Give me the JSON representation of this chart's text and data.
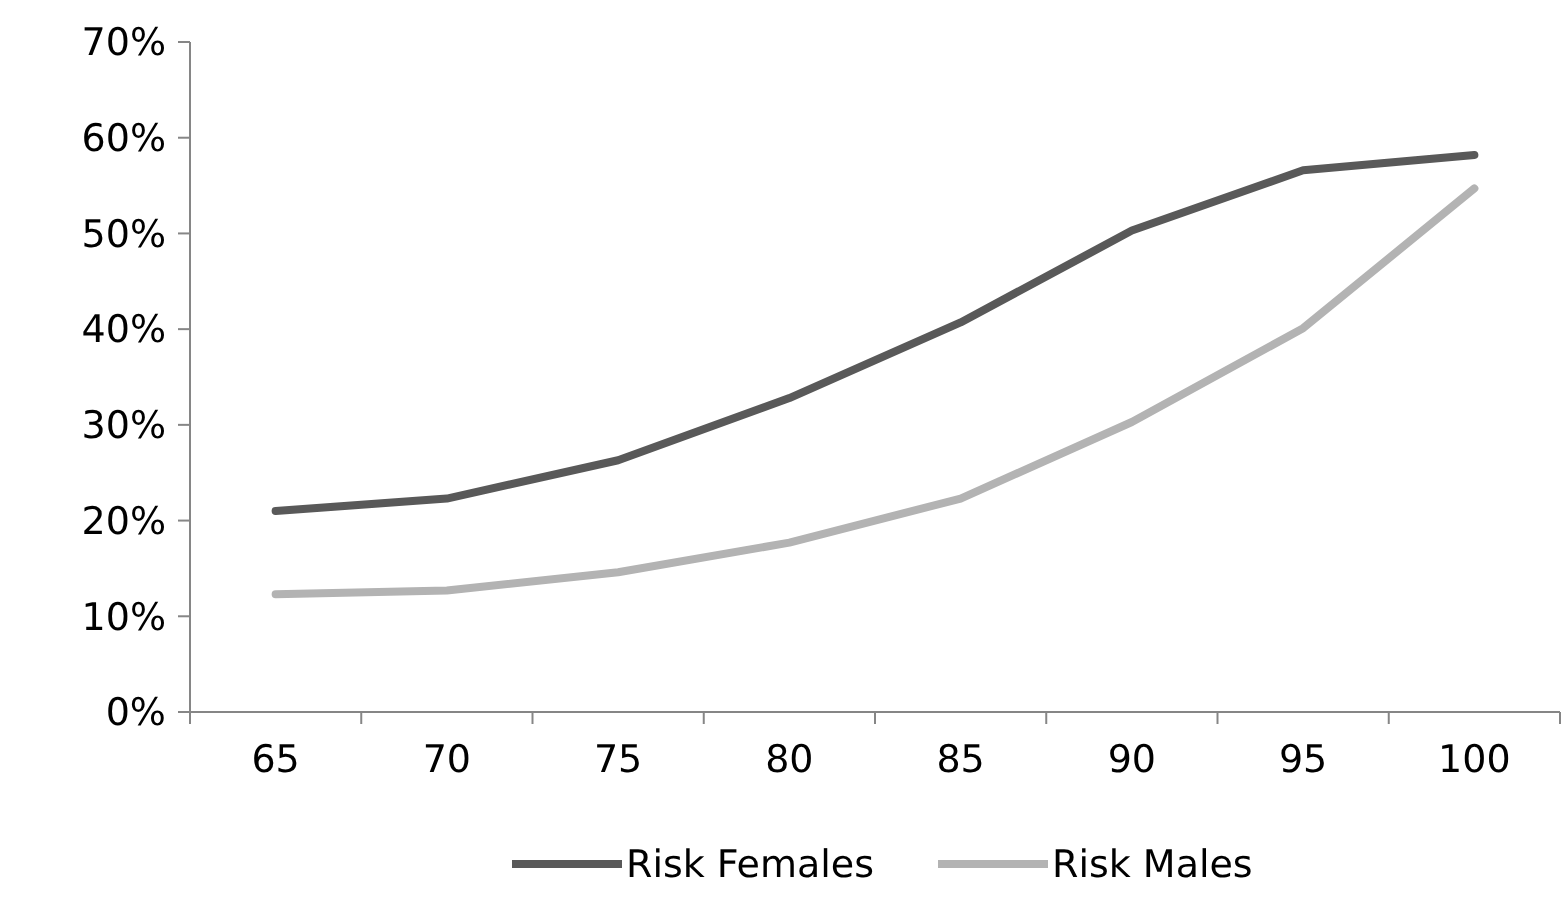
{
  "chart_data": {
    "type": "line",
    "categories": [
      "65",
      "70",
      "75",
      "80",
      "85",
      "90",
      "95",
      "100"
    ],
    "series": [
      {
        "name": "Risk Females",
        "color": "#595959",
        "values": [
          21,
          22.3,
          26.3,
          32.8,
          40.7,
          50.3,
          56.6,
          58.2
        ]
      },
      {
        "name": "Risk Males",
        "color": "#b3b3b3",
        "values": [
          12.3,
          12.7,
          14.6,
          17.7,
          22.3,
          30.3,
          40.1,
          54.7
        ]
      }
    ],
    "ylim": [
      0,
      70
    ],
    "yticks": [
      {
        "value": 0,
        "label": "0%"
      },
      {
        "value": 10,
        "label": "10%"
      },
      {
        "value": 20,
        "label": "20%"
      },
      {
        "value": 30,
        "label": "30%"
      },
      {
        "value": 40,
        "label": "40%"
      },
      {
        "value": 50,
        "label": "50%"
      },
      {
        "value": 60,
        "label": "60%"
      },
      {
        "value": 70,
        "label": "70%"
      }
    ],
    "grid": false,
    "legend": "bottom",
    "marker": "none",
    "line_style": "solid"
  }
}
